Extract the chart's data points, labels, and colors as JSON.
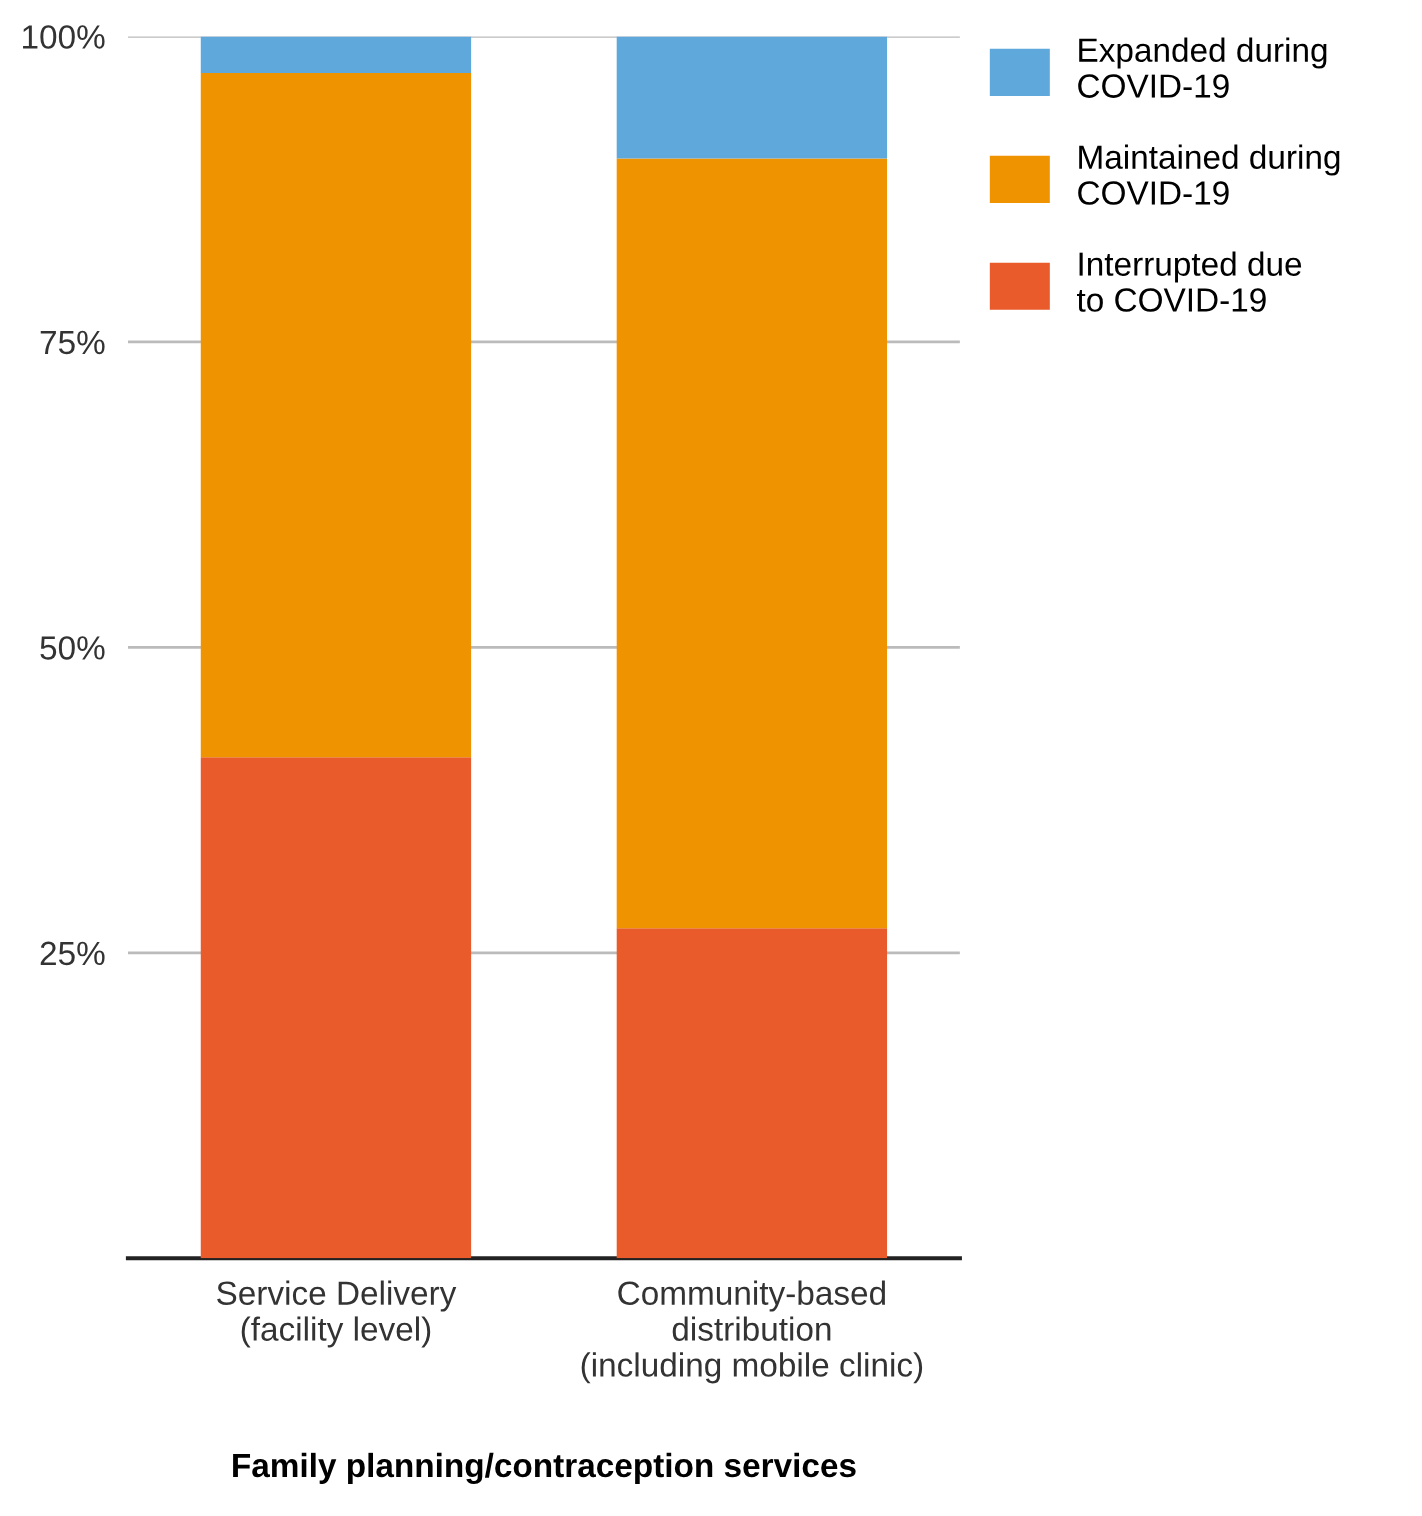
{
  "chart_data": {
    "type": "bar",
    "stacked": true,
    "xlabel": "Family planning/contraception services",
    "categories": [
      "Service Delivery\n(facility level)",
      "Community-based\ndistribution\n(including mobile clinic)"
    ],
    "series": [
      {
        "name": "Interrupted due\nto COVID-19",
        "color": "#e95b2a",
        "values": [
          41,
          27
        ]
      },
      {
        "name": "Maintained during\nCOVID-19",
        "color": "#f09300",
        "values": [
          56,
          63
        ]
      },
      {
        "name": "Expanded during\nCOVID-19",
        "color": "#5fa8dc",
        "values": [
          3,
          10
        ]
      }
    ],
    "ylim": [
      0,
      100
    ],
    "yticks": [
      {
        "value": 25,
        "label": "25%"
      },
      {
        "value": 50,
        "label": "50%"
      },
      {
        "value": 75,
        "label": "75%"
      },
      {
        "value": 100,
        "label": "100%"
      }
    ],
    "grid": "y",
    "legend": "top right"
  }
}
